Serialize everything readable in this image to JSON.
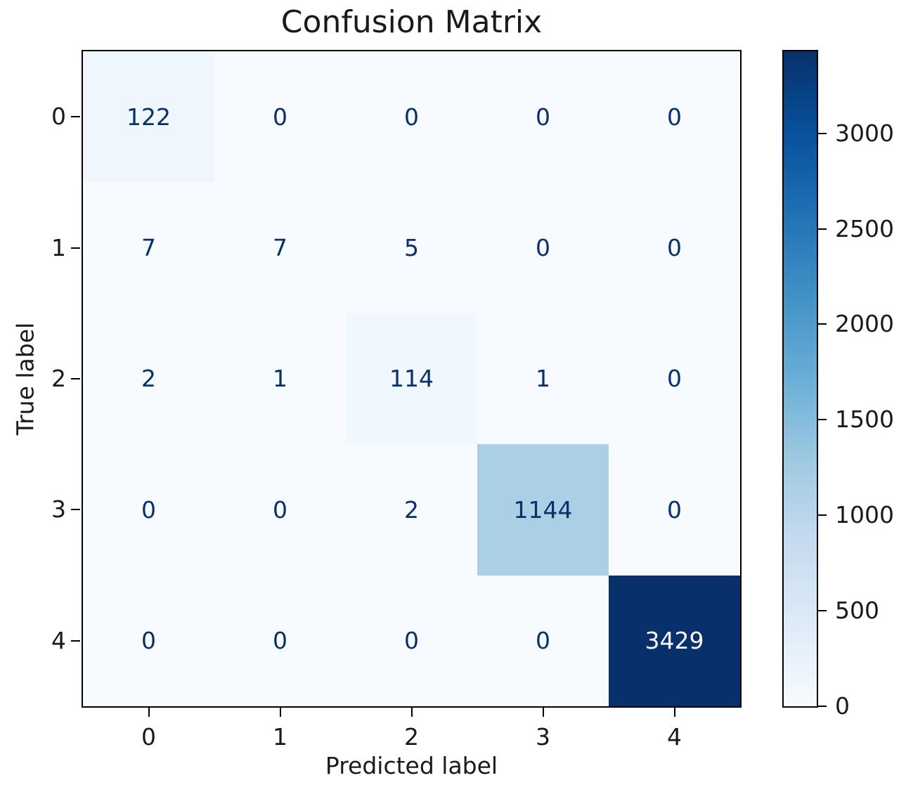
{
  "chart_data": {
    "type": "heatmap",
    "title": "Confusion Matrix",
    "xlabel": "Predicted label",
    "ylabel": "True label",
    "x_tick_labels": [
      "0",
      "1",
      "2",
      "3",
      "4"
    ],
    "y_tick_labels": [
      "0",
      "1",
      "2",
      "3",
      "4"
    ],
    "matrix": [
      [
        122,
        0,
        0,
        0,
        0
      ],
      [
        7,
        7,
        5,
        0,
        0
      ],
      [
        2,
        1,
        114,
        1,
        0
      ],
      [
        0,
        0,
        2,
        1144,
        0
      ],
      [
        0,
        0,
        0,
        0,
        3429
      ]
    ],
    "vmin": 0,
    "vmax": 3429,
    "colorbar_ticks": [
      "0",
      "500",
      "1000",
      "1500",
      "2000",
      "2500",
      "3000"
    ],
    "colormap": "Blues",
    "legend_position": "right-colorbar",
    "grid": false,
    "colors": {
      "cmap_stops": [
        "#f7fbff",
        "#deebf7",
        "#c6dbef",
        "#9ecae1",
        "#6baed6",
        "#4292c6",
        "#2171b5",
        "#08519c",
        "#08306b"
      ],
      "cell_text_dark": "#08306b",
      "cell_text_light": "#f7fbff",
      "axis_color": "#000000",
      "background": "#ffffff"
    }
  }
}
